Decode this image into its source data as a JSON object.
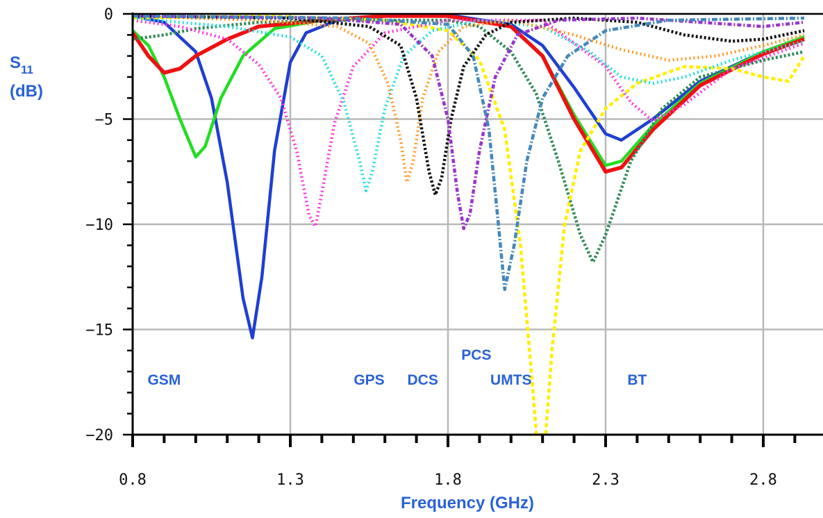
{
  "chart_data": {
    "type": "line",
    "title": "",
    "xlabel": "Frequency (GHz)",
    "ylabel_main": "S",
    "ylabel_sub": "11",
    "ylabel_unit": "(dB)",
    "xlim": [
      0.8,
      2.8
    ],
    "ylim": [
      -20,
      0
    ],
    "x_ticks": [
      {
        "value": 0.8,
        "label": "0.8"
      },
      {
        "value": 1.3,
        "label": "1.3"
      },
      {
        "value": 1.8,
        "label": "1.8"
      },
      {
        "value": 2.3,
        "label": "2.3"
      },
      {
        "value": 2.8,
        "label": "2.8"
      }
    ],
    "y_ticks": [
      {
        "value": 0,
        "label": "0"
      },
      {
        "value": -5,
        "label": "−5"
      },
      {
        "value": -10,
        "label": "−10"
      },
      {
        "value": -15,
        "label": "−15"
      },
      {
        "value": -20,
        "label": "−20"
      }
    ],
    "grid": true,
    "band_labels": [
      {
        "text": "GSM",
        "x": 0.9,
        "y": -17.4
      },
      {
        "text": "GPS",
        "x": 1.55,
        "y": -17.4
      },
      {
        "text": "DCS",
        "x": 1.72,
        "y": -17.4
      },
      {
        "text": "PCS",
        "x": 1.89,
        "y": -16.2
      },
      {
        "text": "UMTS",
        "x": 2.0,
        "y": -17.4
      },
      {
        "text": "BT",
        "x": 2.4,
        "y": -17.4
      }
    ],
    "series": [
      {
        "color": "#1f3fd1",
        "dash": "solid",
        "width": 4.5,
        "points": [
          [
            0.8,
            -0.1
          ],
          [
            0.9,
            -0.4
          ],
          [
            1.0,
            -1.8
          ],
          [
            1.05,
            -4.0
          ],
          [
            1.1,
            -8.0
          ],
          [
            1.15,
            -13.5
          ],
          [
            1.18,
            -15.4
          ],
          [
            1.21,
            -12.5
          ],
          [
            1.25,
            -6.5
          ],
          [
            1.3,
            -2.3
          ],
          [
            1.35,
            -0.9
          ],
          [
            1.45,
            -0.3
          ],
          [
            1.6,
            -0.1
          ],
          [
            1.8,
            -0.05
          ],
          [
            2.0,
            -0.5
          ],
          [
            2.1,
            -1.5
          ],
          [
            2.2,
            -3.5
          ],
          [
            2.3,
            -5.7
          ],
          [
            2.35,
            -6.0
          ],
          [
            2.45,
            -5.0
          ],
          [
            2.6,
            -3.2
          ],
          [
            2.8,
            -1.8
          ],
          [
            2.93,
            -1.1
          ]
        ]
      },
      {
        "color": "#22dd22",
        "dash": "solid",
        "width": 4.5,
        "points": [
          [
            0.8,
            -0.8
          ],
          [
            0.85,
            -1.5
          ],
          [
            0.9,
            -3.0
          ],
          [
            0.95,
            -5.0
          ],
          [
            1.0,
            -6.8
          ],
          [
            1.03,
            -6.3
          ],
          [
            1.08,
            -4.0
          ],
          [
            1.15,
            -2.0
          ],
          [
            1.25,
            -0.7
          ],
          [
            1.4,
            -0.3
          ],
          [
            1.6,
            -0.1
          ],
          [
            1.8,
            -0.1
          ],
          [
            2.0,
            -0.6
          ],
          [
            2.1,
            -2.0
          ],
          [
            2.2,
            -4.8
          ],
          [
            2.3,
            -7.2
          ],
          [
            2.35,
            -7.0
          ],
          [
            2.45,
            -5.3
          ],
          [
            2.6,
            -3.3
          ],
          [
            2.8,
            -1.8
          ],
          [
            2.93,
            -1.1
          ]
        ]
      },
      {
        "color": "#ee1111",
        "dash": "solid",
        "width": 5.5,
        "points": [
          [
            0.8,
            -0.9
          ],
          [
            0.85,
            -2.0
          ],
          [
            0.9,
            -2.8
          ],
          [
            0.95,
            -2.6
          ],
          [
            1.0,
            -2.0
          ],
          [
            1.1,
            -1.2
          ],
          [
            1.2,
            -0.6
          ],
          [
            1.4,
            -0.3
          ],
          [
            1.6,
            -0.1
          ],
          [
            1.8,
            -0.1
          ],
          [
            2.0,
            -0.6
          ],
          [
            2.1,
            -2.0
          ],
          [
            2.2,
            -5.0
          ],
          [
            2.3,
            -7.5
          ],
          [
            2.35,
            -7.3
          ],
          [
            2.45,
            -5.5
          ],
          [
            2.6,
            -3.4
          ],
          [
            2.8,
            -1.9
          ],
          [
            2.93,
            -1.2
          ]
        ]
      },
      {
        "color": "#2e8b57",
        "dash": "3,3",
        "width": 4.5,
        "points": [
          [
            0.8,
            -1.2
          ],
          [
            0.9,
            -1.0
          ],
          [
            1.0,
            -0.7
          ],
          [
            1.2,
            -0.4
          ],
          [
            1.5,
            -0.3
          ],
          [
            1.8,
            -0.3
          ],
          [
            1.9,
            -0.6
          ],
          [
            2.0,
            -1.8
          ],
          [
            2.08,
            -3.8
          ],
          [
            2.15,
            -7.0
          ],
          [
            2.22,
            -10.5
          ],
          [
            2.26,
            -11.8
          ],
          [
            2.3,
            -10.5
          ],
          [
            2.38,
            -7.0
          ],
          [
            2.48,
            -4.5
          ],
          [
            2.6,
            -3.0
          ],
          [
            2.8,
            -2.2
          ],
          [
            2.93,
            -1.8
          ]
        ]
      },
      {
        "color": "#ffee00",
        "dash": "6,4",
        "width": 4.5,
        "points": [
          [
            0.8,
            -0.2
          ],
          [
            1.2,
            -0.1
          ],
          [
            1.6,
            -0.3
          ],
          [
            1.8,
            -0.8
          ],
          [
            1.9,
            -2.2
          ],
          [
            1.98,
            -5.5
          ],
          [
            2.03,
            -11.0
          ],
          [
            2.07,
            -18.0
          ],
          [
            2.08,
            -20.0
          ],
          [
            2.11,
            -20.0
          ],
          [
            2.13,
            -16.0
          ],
          [
            2.17,
            -10.0
          ],
          [
            2.22,
            -6.5
          ],
          [
            2.3,
            -4.5
          ],
          [
            2.4,
            -3.3
          ],
          [
            2.55,
            -2.5
          ],
          [
            2.7,
            -2.6
          ],
          [
            2.8,
            -3.0
          ],
          [
            2.88,
            -3.2
          ],
          [
            2.93,
            -2.0
          ]
        ]
      },
      {
        "color": "#ff33dd",
        "dash": "2,4",
        "width": 4.5,
        "points": [
          [
            0.8,
            -0.3
          ],
          [
            0.95,
            -0.6
          ],
          [
            1.1,
            -1.2
          ],
          [
            1.2,
            -2.4
          ],
          [
            1.27,
            -4.0
          ],
          [
            1.32,
            -6.5
          ],
          [
            1.36,
            -9.6
          ],
          [
            1.38,
            -10.1
          ],
          [
            1.4,
            -8.5
          ],
          [
            1.44,
            -5.2
          ],
          [
            1.5,
            -2.5
          ],
          [
            1.6,
            -0.9
          ],
          [
            1.8,
            -0.3
          ],
          [
            2.1,
            -0.3
          ],
          [
            2.3,
            -2.5
          ],
          [
            2.38,
            -4.2
          ],
          [
            2.45,
            -5.1
          ],
          [
            2.55,
            -4.3
          ],
          [
            2.7,
            -2.6
          ],
          [
            2.93,
            -1.4
          ]
        ]
      },
      {
        "color": "#22dddd",
        "dash": "2,4",
        "width": 4.5,
        "points": [
          [
            0.8,
            -0.2
          ],
          [
            1.1,
            -0.6
          ],
          [
            1.3,
            -1.1
          ],
          [
            1.4,
            -2.0
          ],
          [
            1.47,
            -4.2
          ],
          [
            1.52,
            -7.0
          ],
          [
            1.54,
            -8.4
          ],
          [
            1.56,
            -7.5
          ],
          [
            1.6,
            -4.5
          ],
          [
            1.66,
            -2.0
          ],
          [
            1.75,
            -0.8
          ],
          [
            1.9,
            -0.3
          ],
          [
            2.1,
            -0.6
          ],
          [
            2.25,
            -1.8
          ],
          [
            2.35,
            -3.0
          ],
          [
            2.45,
            -3.3
          ],
          [
            2.55,
            -3.0
          ],
          [
            2.7,
            -2.2
          ],
          [
            2.93,
            -1.3
          ]
        ]
      },
      {
        "color": "#ff9922",
        "dash": "2,4",
        "width": 4.5,
        "points": [
          [
            0.8,
            -0.1
          ],
          [
            1.2,
            -0.3
          ],
          [
            1.45,
            -0.6
          ],
          [
            1.55,
            -1.4
          ],
          [
            1.61,
            -3.3
          ],
          [
            1.65,
            -6.0
          ],
          [
            1.67,
            -8.0
          ],
          [
            1.69,
            -7.0
          ],
          [
            1.72,
            -4.0
          ],
          [
            1.77,
            -1.8
          ],
          [
            1.85,
            -0.6
          ],
          [
            2.0,
            -0.3
          ],
          [
            2.2,
            -1.0
          ],
          [
            2.35,
            -1.7
          ],
          [
            2.5,
            -2.2
          ],
          [
            2.65,
            -2.0
          ],
          [
            2.8,
            -1.5
          ],
          [
            2.93,
            -1.0
          ]
        ]
      },
      {
        "color": "#111111",
        "dash": "3,3",
        "width": 4.5,
        "points": [
          [
            0.8,
            -0.1
          ],
          [
            1.3,
            -0.2
          ],
          [
            1.55,
            -0.6
          ],
          [
            1.65,
            -1.5
          ],
          [
            1.7,
            -4.0
          ],
          [
            1.74,
            -7.5
          ],
          [
            1.76,
            -8.6
          ],
          [
            1.78,
            -7.8
          ],
          [
            1.81,
            -5.0
          ],
          [
            1.85,
            -2.5
          ],
          [
            1.92,
            -1.0
          ],
          [
            2.0,
            -0.4
          ],
          [
            2.2,
            -0.2
          ],
          [
            2.4,
            -0.4
          ],
          [
            2.55,
            -1.0
          ],
          [
            2.7,
            -1.3
          ],
          [
            2.8,
            -1.2
          ],
          [
            2.93,
            -0.8
          ]
        ]
      },
      {
        "color": "#9933cc",
        "dash": "6,3,2,3",
        "width": 4.5,
        "points": [
          [
            0.8,
            -0.1
          ],
          [
            1.4,
            -0.2
          ],
          [
            1.65,
            -0.5
          ],
          [
            1.75,
            -2.0
          ],
          [
            1.8,
            -5.0
          ],
          [
            1.83,
            -8.5
          ],
          [
            1.85,
            -10.2
          ],
          [
            1.87,
            -9.5
          ],
          [
            1.9,
            -6.5
          ],
          [
            1.95,
            -3.0
          ],
          [
            2.02,
            -1.0
          ],
          [
            2.15,
            -0.3
          ],
          [
            2.4,
            -0.2
          ],
          [
            2.6,
            -0.4
          ],
          [
            2.8,
            -0.6
          ],
          [
            2.93,
            -0.4
          ]
        ]
      },
      {
        "color": "#4488bb",
        "dash": "8,3,2,3",
        "width": 4.5,
        "points": [
          [
            0.8,
            -0.1
          ],
          [
            1.5,
            -0.2
          ],
          [
            1.8,
            -0.5
          ],
          [
            1.88,
            -2.0
          ],
          [
            1.93,
            -5.5
          ],
          [
            1.96,
            -10.0
          ],
          [
            1.98,
            -13.1
          ],
          [
            2.01,
            -11.0
          ],
          [
            2.05,
            -7.0
          ],
          [
            2.1,
            -4.0
          ],
          [
            2.18,
            -2.0
          ],
          [
            2.3,
            -0.8
          ],
          [
            2.5,
            -0.3
          ],
          [
            2.93,
            -0.2
          ]
        ]
      }
    ]
  }
}
